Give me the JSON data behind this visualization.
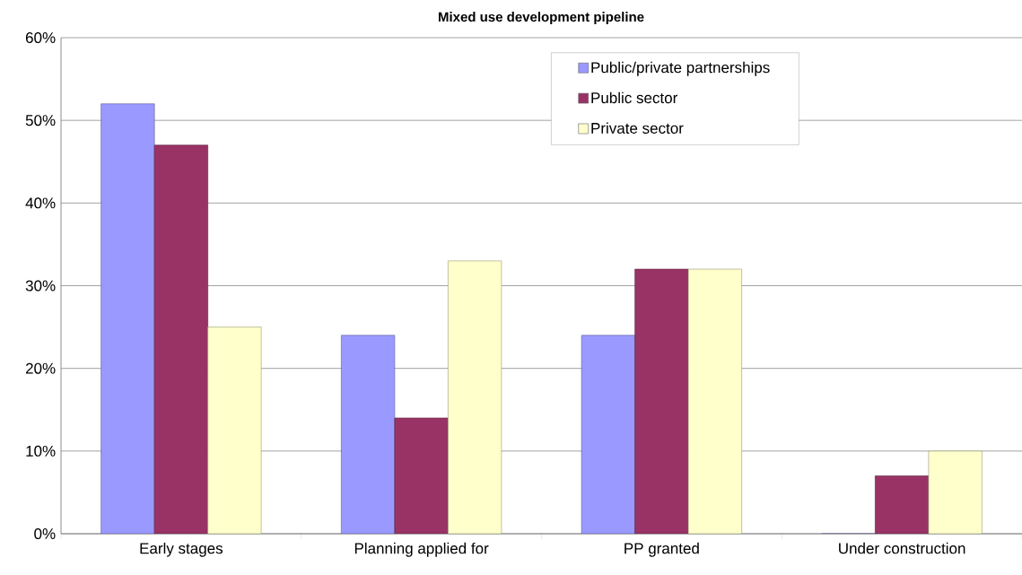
{
  "chart_data": {
    "type": "bar",
    "title": "Mixed use development pipeline",
    "categories": [
      "Early stages",
      "Planning applied for",
      "PP granted",
      "Under construction"
    ],
    "series": [
      {
        "name": "Public/private partnerships",
        "color": "#9999ff",
        "values": [
          52,
          24,
          24,
          0
        ]
      },
      {
        "name": "Public sector",
        "color": "#993366",
        "values": [
          47,
          14,
          32,
          7
        ]
      },
      {
        "name": "Private sector",
        "color": "#ffffcc",
        "values": [
          25,
          33,
          32,
          10
        ]
      }
    ],
    "ylim": [
      0,
      60
    ],
    "yticks": [
      {
        "value": 0,
        "label": "0%"
      },
      {
        "value": 10,
        "label": "10%"
      },
      {
        "value": 20,
        "label": "20%"
      },
      {
        "value": 30,
        "label": "30%"
      },
      {
        "value": 40,
        "label": "40%"
      },
      {
        "value": 50,
        "label": "50%"
      },
      {
        "value": 60,
        "label": "60%"
      }
    ],
    "grid": "y",
    "legend": "top right"
  }
}
